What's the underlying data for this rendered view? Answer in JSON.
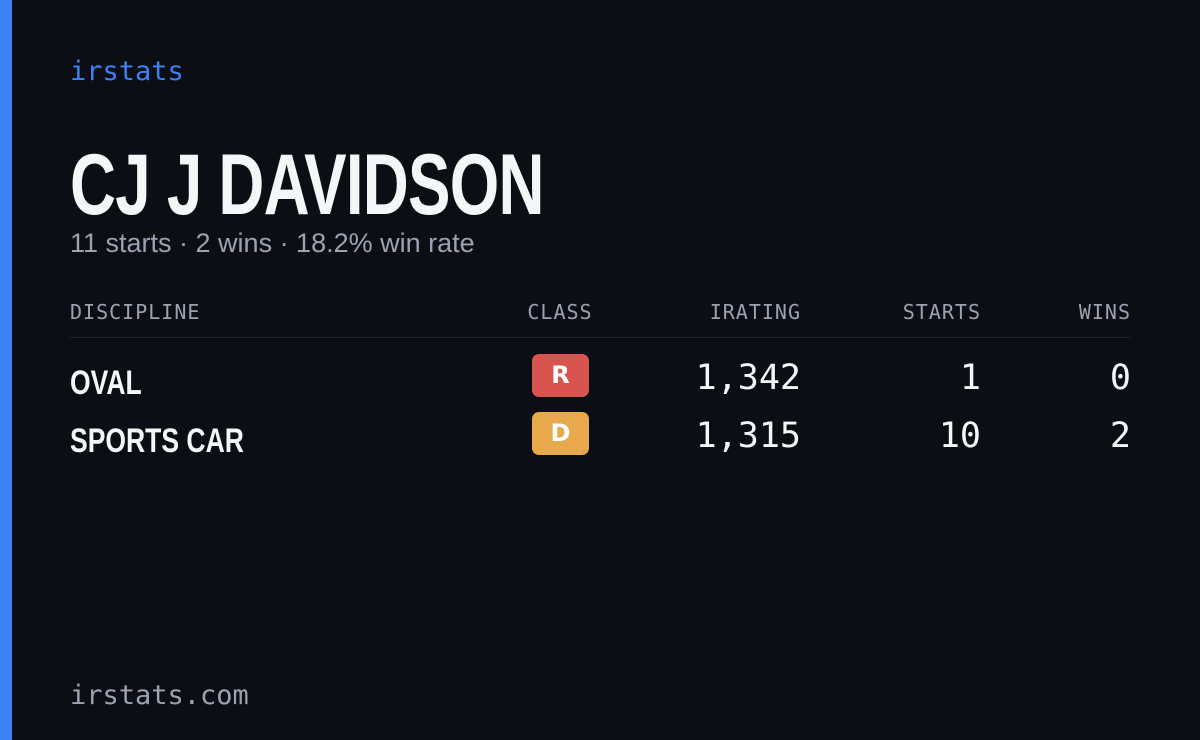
{
  "brand": "irstats",
  "driver": {
    "name": "CJ J DAVIDSON",
    "summary": "11 starts · 2 wins · 18.2% win rate"
  },
  "table": {
    "headers": [
      "DISCIPLINE",
      "CLASS",
      "IRATING",
      "STARTS",
      "WINS"
    ],
    "rows": [
      {
        "discipline": "OVAL",
        "class": "R",
        "class_color": "#d9534f",
        "irating": "1,342",
        "starts": "1",
        "wins": "0"
      },
      {
        "discipline": "SPORTS CAR",
        "class": "D",
        "class_color": "#e8a84c",
        "irating": "1,315",
        "starts": "10",
        "wins": "2"
      }
    ]
  },
  "footer": "irstats.com"
}
